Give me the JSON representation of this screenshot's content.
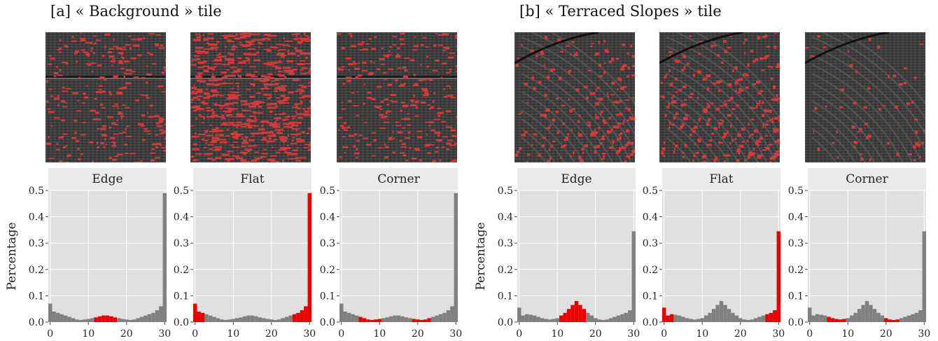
{
  "sections": [
    {
      "title": "[a] « Background » tile"
    },
    {
      "title": "[b] « Terraced Slopes » tile"
    }
  ],
  "tiles": [
    {
      "density": 0.3,
      "pattern": "horizontal"
    },
    {
      "density": 0.72,
      "pattern": "horizontal"
    },
    {
      "density": 0.32,
      "pattern": "horizontal"
    },
    {
      "density": 0.52,
      "pattern": "arcs"
    },
    {
      "density": 0.62,
      "pattern": "arcs"
    },
    {
      "density": 0.12,
      "pattern": "arcs"
    }
  ],
  "colors": {
    "panel_bg": "#e0e0e0",
    "strip_bg": "#eaeaea",
    "bar_gray": "#808080",
    "bar_highlight": "#ee0000",
    "overlay_red": "#d43a3a"
  },
  "chart_data": [
    {
      "type": "bar",
      "title": "Edge",
      "ylabel": "Percentage",
      "xlim": [
        -0.5,
        30.5
      ],
      "ylim": [
        0,
        0.5
      ],
      "xticks": [
        0,
        10,
        20,
        30
      ],
      "yticks": [
        0.0,
        0.1,
        0.2,
        0.3,
        0.4,
        0.5
      ],
      "ytick_labels": [
        "0.0",
        "0.1",
        "0.2",
        "0.3",
        "0.4",
        "0.5"
      ],
      "x": [
        0,
        1,
        2,
        3,
        4,
        5,
        6,
        7,
        8,
        9,
        10,
        11,
        12,
        13,
        14,
        15,
        16,
        17,
        18,
        19,
        20,
        21,
        22,
        23,
        24,
        25,
        26,
        27,
        28,
        29,
        30
      ],
      "values": [
        0.07,
        0.04,
        0.035,
        0.03,
        0.025,
        0.02,
        0.015,
        0.01,
        0.008,
        0.01,
        0.012,
        0.015,
        0.018,
        0.022,
        0.025,
        0.025,
        0.022,
        0.018,
        0.015,
        0.012,
        0.01,
        0.008,
        0.01,
        0.015,
        0.02,
        0.025,
        0.03,
        0.035,
        0.045,
        0.06,
        0.49
      ],
      "highlight": [
        12,
        13,
        14,
        15,
        16,
        17
      ]
    },
    {
      "type": "bar",
      "title": "Flat",
      "xlim": [
        -0.5,
        30.5
      ],
      "ylim": [
        0,
        0.5
      ],
      "xticks": [
        0,
        10,
        20,
        30
      ],
      "yticks": [
        0.0,
        0.1,
        0.2,
        0.3,
        0.4,
        0.5
      ],
      "ytick_labels": [
        "0.0",
        "0.1",
        "0.2",
        "0.3",
        "0.4",
        "0.5"
      ],
      "x": [
        0,
        1,
        2,
        3,
        4,
        5,
        6,
        7,
        8,
        9,
        10,
        11,
        12,
        13,
        14,
        15,
        16,
        17,
        18,
        19,
        20,
        21,
        22,
        23,
        24,
        25,
        26,
        27,
        28,
        29,
        30
      ],
      "values": [
        0.07,
        0.04,
        0.035,
        0.03,
        0.025,
        0.02,
        0.015,
        0.01,
        0.008,
        0.01,
        0.012,
        0.015,
        0.018,
        0.022,
        0.025,
        0.025,
        0.022,
        0.018,
        0.015,
        0.012,
        0.01,
        0.008,
        0.01,
        0.015,
        0.02,
        0.025,
        0.03,
        0.035,
        0.045,
        0.06,
        0.49
      ],
      "highlight": [
        0,
        1,
        2,
        26,
        27,
        28,
        29,
        30
      ]
    },
    {
      "type": "bar",
      "title": "Corner",
      "xlim": [
        -0.5,
        30.5
      ],
      "ylim": [
        0,
        0.5
      ],
      "xticks": [
        0,
        10,
        20,
        30
      ],
      "yticks": [
        0.0,
        0.1,
        0.2,
        0.3,
        0.4,
        0.5
      ],
      "ytick_labels": [
        "0.0",
        "0.1",
        "0.2",
        "0.3",
        "0.4",
        "0.5"
      ],
      "x": [
        0,
        1,
        2,
        3,
        4,
        5,
        6,
        7,
        8,
        9,
        10,
        11,
        12,
        13,
        14,
        15,
        16,
        17,
        18,
        19,
        20,
        21,
        22,
        23,
        24,
        25,
        26,
        27,
        28,
        29,
        30
      ],
      "values": [
        0.07,
        0.04,
        0.035,
        0.03,
        0.025,
        0.02,
        0.015,
        0.01,
        0.008,
        0.01,
        0.012,
        0.015,
        0.018,
        0.022,
        0.025,
        0.025,
        0.022,
        0.018,
        0.015,
        0.012,
        0.01,
        0.008,
        0.01,
        0.015,
        0.02,
        0.025,
        0.03,
        0.035,
        0.045,
        0.06,
        0.49
      ],
      "highlight": [
        5,
        6,
        7,
        8,
        9,
        10,
        19,
        20,
        21,
        22,
        23
      ]
    },
    {
      "type": "bar",
      "title": "Edge",
      "ylabel": "Percentage",
      "xlim": [
        -0.5,
        30.5
      ],
      "ylim": [
        0,
        0.5
      ],
      "xticks": [
        0,
        10,
        20,
        30
      ],
      "yticks": [
        0.0,
        0.1,
        0.2,
        0.3,
        0.4,
        0.5
      ],
      "ytick_labels": [
        "0.0",
        "0.1",
        "0.2",
        "0.3",
        "0.4",
        "0.5"
      ],
      "x": [
        0,
        1,
        2,
        3,
        4,
        5,
        6,
        7,
        8,
        9,
        10,
        11,
        12,
        13,
        14,
        15,
        16,
        17,
        18,
        19,
        20,
        21,
        22,
        23,
        24,
        25,
        26,
        27,
        28,
        29,
        30
      ],
      "values": [
        0.055,
        0.025,
        0.03,
        0.028,
        0.025,
        0.02,
        0.015,
        0.012,
        0.01,
        0.012,
        0.015,
        0.025,
        0.035,
        0.05,
        0.065,
        0.08,
        0.065,
        0.05,
        0.035,
        0.025,
        0.015,
        0.01,
        0.008,
        0.01,
        0.015,
        0.02,
        0.025,
        0.03,
        0.035,
        0.045,
        0.345
      ],
      "highlight": [
        11,
        12,
        13,
        14,
        15,
        16,
        17
      ]
    },
    {
      "type": "bar",
      "title": "Flat",
      "xlim": [
        -0.5,
        30.5
      ],
      "ylim": [
        0,
        0.5
      ],
      "xticks": [
        0,
        10,
        20,
        30
      ],
      "yticks": [
        0.0,
        0.1,
        0.2,
        0.3,
        0.4,
        0.5
      ],
      "ytick_labels": [
        "0.0",
        "0.1",
        "0.2",
        "0.3",
        "0.4",
        "0.5"
      ],
      "x": [
        0,
        1,
        2,
        3,
        4,
        5,
        6,
        7,
        8,
        9,
        10,
        11,
        12,
        13,
        14,
        15,
        16,
        17,
        18,
        19,
        20,
        21,
        22,
        23,
        24,
        25,
        26,
        27,
        28,
        29,
        30
      ],
      "values": [
        0.055,
        0.025,
        0.03,
        0.028,
        0.025,
        0.02,
        0.015,
        0.012,
        0.01,
        0.012,
        0.015,
        0.025,
        0.035,
        0.05,
        0.065,
        0.08,
        0.065,
        0.05,
        0.035,
        0.025,
        0.015,
        0.01,
        0.008,
        0.01,
        0.015,
        0.02,
        0.025,
        0.03,
        0.035,
        0.045,
        0.345
      ],
      "highlight": [
        0,
        1,
        2,
        27,
        28,
        29,
        30
      ]
    },
    {
      "type": "bar",
      "title": "Corner",
      "xlim": [
        -0.5,
        30.5
      ],
      "ylim": [
        0,
        0.5
      ],
      "xticks": [
        0,
        10,
        20,
        30
      ],
      "yticks": [
        0.0,
        0.1,
        0.2,
        0.3,
        0.4,
        0.5
      ],
      "ytick_labels": [
        "0.0",
        "0.1",
        "0.2",
        "0.3",
        "0.4",
        "0.5"
      ],
      "x": [
        0,
        1,
        2,
        3,
        4,
        5,
        6,
        7,
        8,
        9,
        10,
        11,
        12,
        13,
        14,
        15,
        16,
        17,
        18,
        19,
        20,
        21,
        22,
        23,
        24,
        25,
        26,
        27,
        28,
        29,
        30
      ],
      "values": [
        0.055,
        0.025,
        0.03,
        0.028,
        0.025,
        0.02,
        0.015,
        0.012,
        0.01,
        0.012,
        0.015,
        0.025,
        0.035,
        0.05,
        0.065,
        0.08,
        0.065,
        0.05,
        0.035,
        0.025,
        0.015,
        0.01,
        0.008,
        0.01,
        0.015,
        0.02,
        0.025,
        0.03,
        0.035,
        0.045,
        0.345
      ],
      "highlight": [
        5,
        6,
        7,
        8,
        9,
        20,
        21,
        22,
        23
      ]
    }
  ]
}
